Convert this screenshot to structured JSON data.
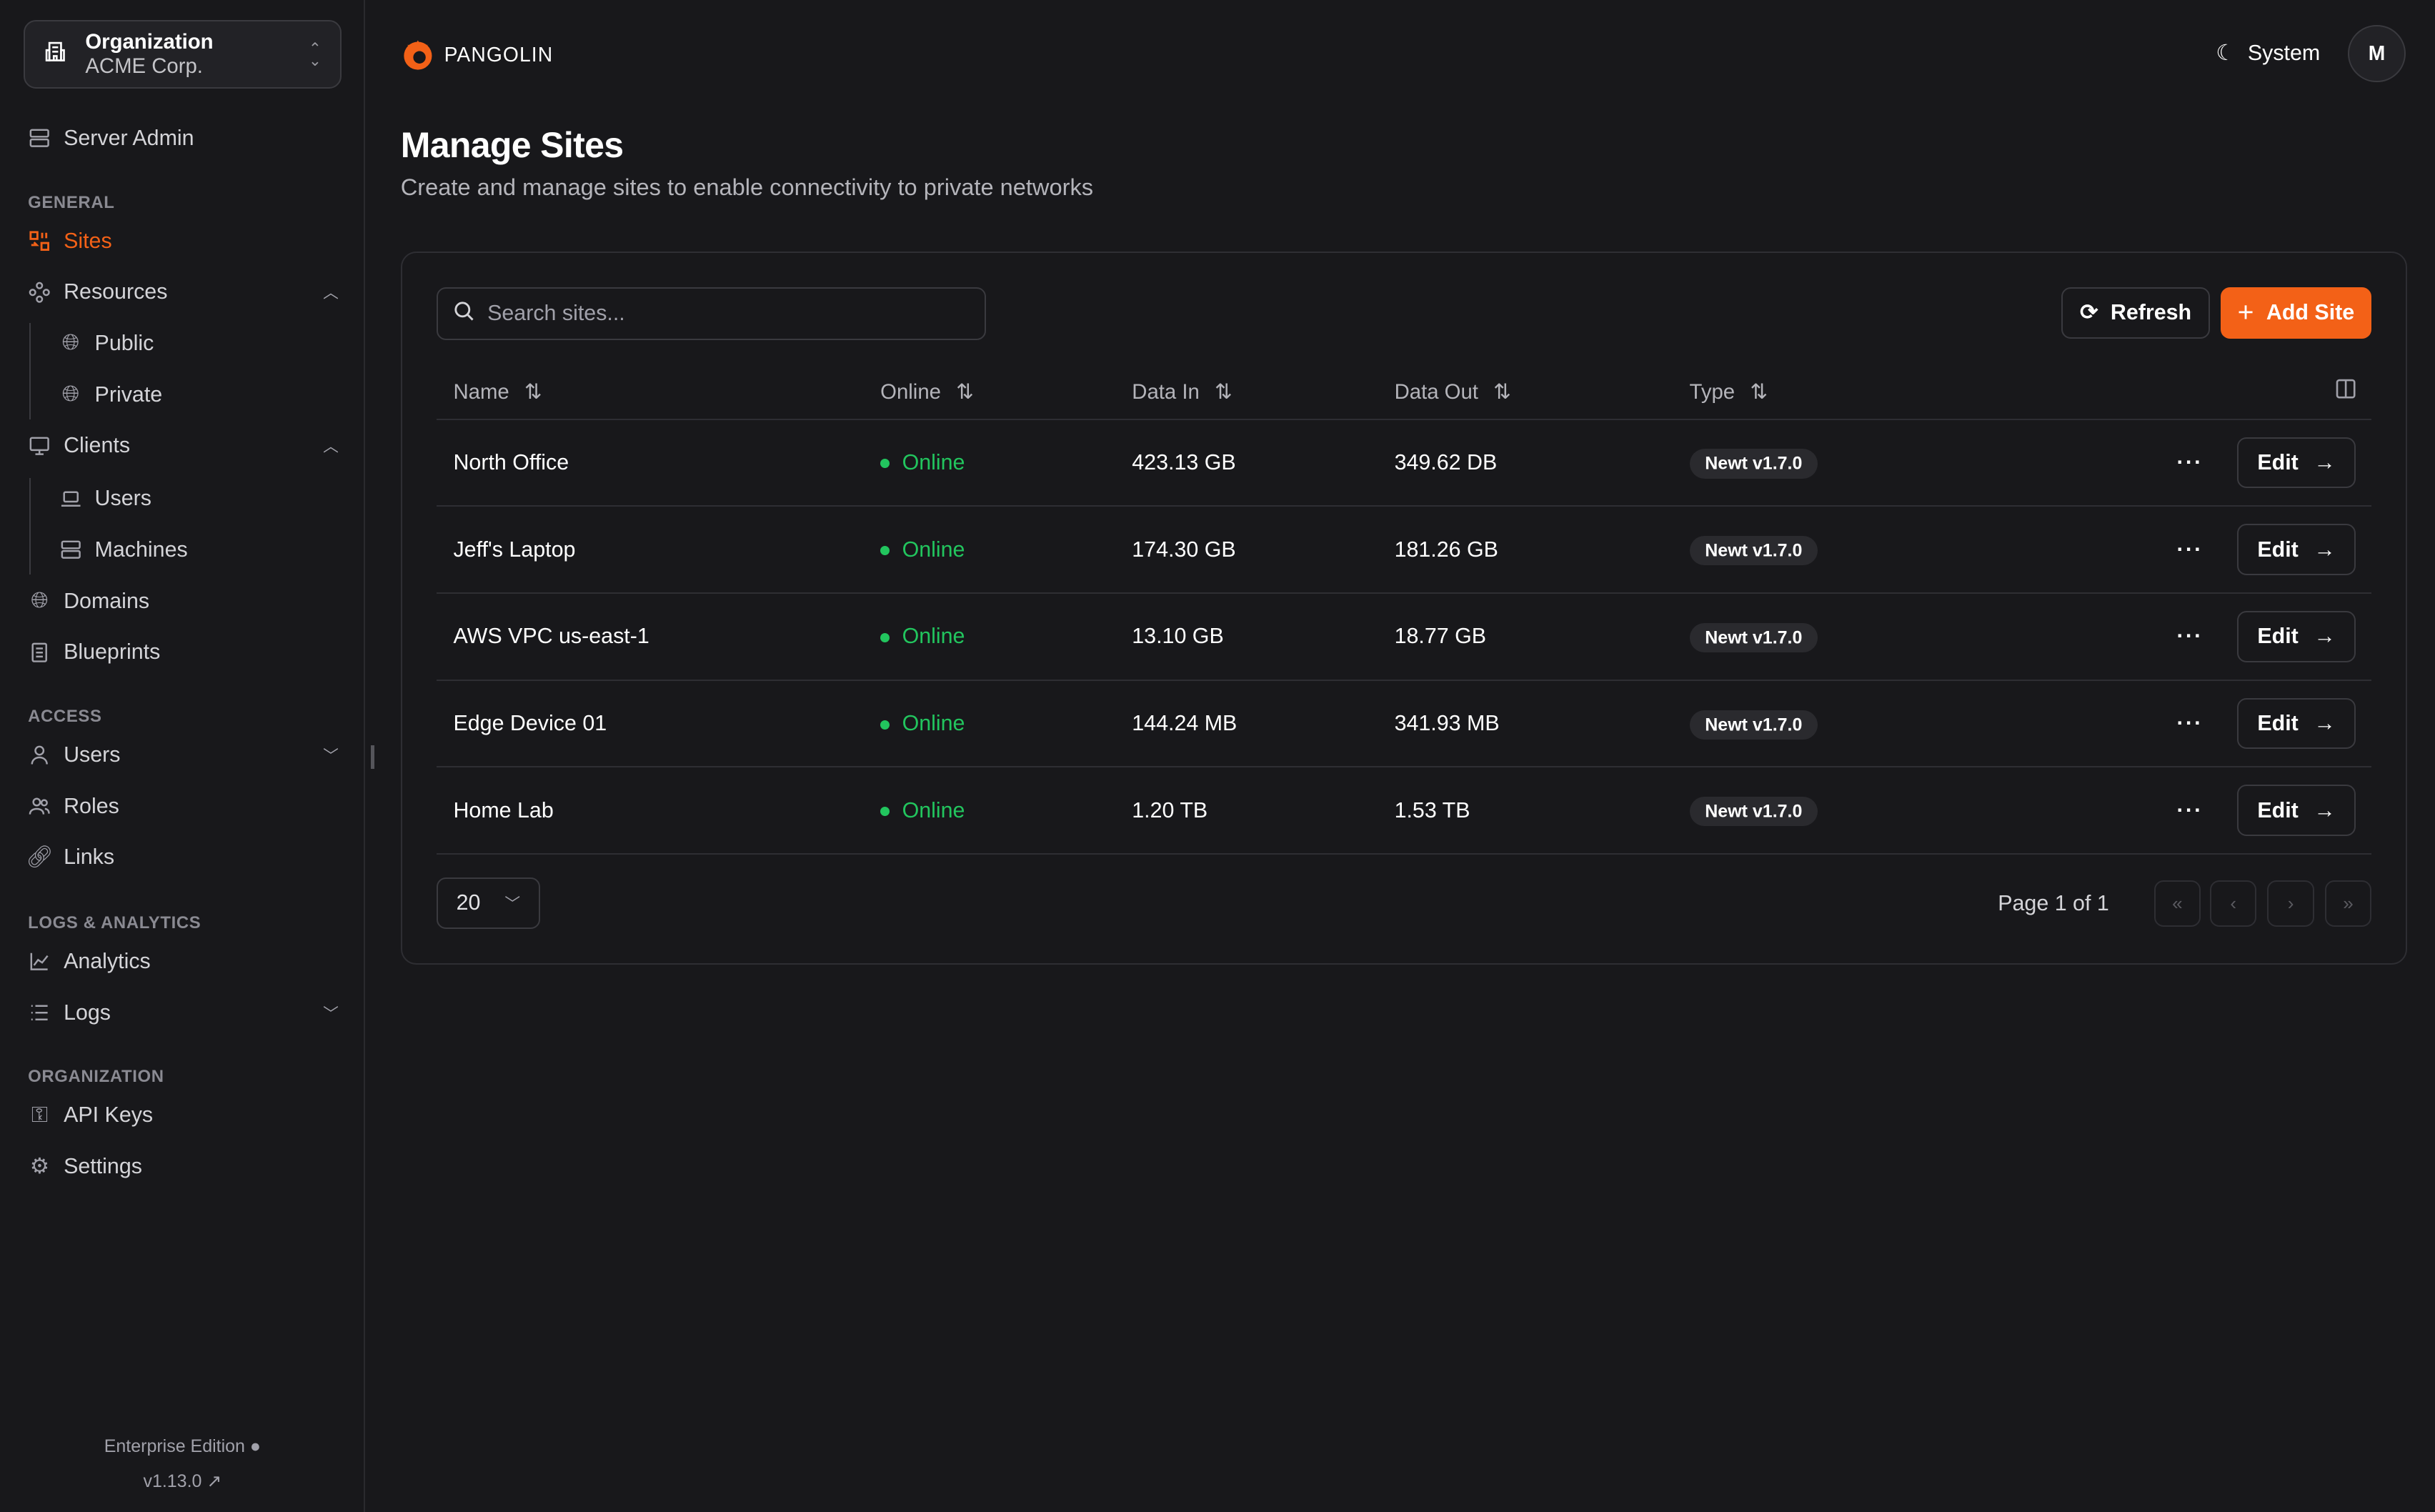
{
  "sidebar": {
    "org_label": "Organization",
    "org_name": "ACME Corp.",
    "server_admin": "Server Admin",
    "sections": {
      "general": "GENERAL",
      "access": "ACCESS",
      "logs": "LOGS & ANALYTICS",
      "organization": "ORGANIZATION"
    },
    "items": {
      "sites": "Sites",
      "resources": "Resources",
      "public": "Public",
      "private": "Private",
      "clients": "Clients",
      "users_client": "Users",
      "machines": "Machines",
      "domains": "Domains",
      "blueprints": "Blueprints",
      "users": "Users",
      "roles": "Roles",
      "links": "Links",
      "analytics": "Analytics",
      "logs": "Logs",
      "api_keys": "API Keys",
      "settings": "Settings"
    },
    "edition": "Enterprise Edition",
    "version": "v1.13.0"
  },
  "header": {
    "brand": "PANGOLIN",
    "theme": "System",
    "avatar": "M"
  },
  "page": {
    "title": "Manage Sites",
    "subtitle": "Create and manage sites to enable connectivity to private networks"
  },
  "toolbar": {
    "search_placeholder": "Search sites...",
    "refresh": "Refresh",
    "add": "Add Site"
  },
  "table": {
    "columns": [
      "Name",
      "Online",
      "Data In",
      "Data Out",
      "Type"
    ],
    "rows": [
      {
        "name": "North Office",
        "online": "Online",
        "data_in": "423.13 GB",
        "data_out": "349.62 DB",
        "type": "Newt v1.7.0"
      },
      {
        "name": "Jeff's Laptop",
        "online": "Online",
        "data_in": "174.30 GB",
        "data_out": "181.26 GB",
        "type": "Newt v1.7.0"
      },
      {
        "name": "AWS VPC us-east-1",
        "online": "Online",
        "data_in": "13.10 GB",
        "data_out": "18.77 GB",
        "type": "Newt v1.7.0"
      },
      {
        "name": "Edge Device 01",
        "online": "Online",
        "data_in": "144.24 MB",
        "data_out": "341.93 MB",
        "type": "Newt v1.7.0"
      },
      {
        "name": "Home Lab",
        "online": "Online",
        "data_in": "1.20 TB",
        "data_out": "1.53 TB",
        "type": "Newt v1.7.0"
      }
    ],
    "edit_label": "Edit"
  },
  "pagination": {
    "page_size": "20",
    "page_info": "Page 1 of 1"
  },
  "colors": {
    "accent": "#f36117",
    "online": "#22c55e",
    "background": "#18181b"
  }
}
